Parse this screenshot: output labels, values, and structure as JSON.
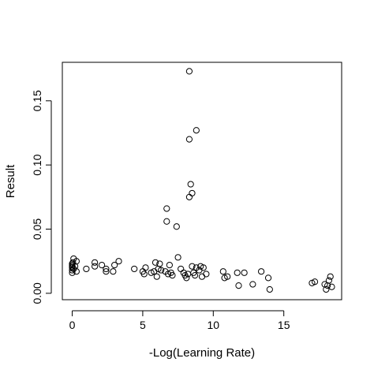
{
  "chart_data": {
    "type": "scatter",
    "title": "",
    "xlabel": "-Log(Learning Rate)",
    "ylabel": "Result",
    "xlim": [
      -0.7,
      19.1
    ],
    "ylim": [
      -0.005,
      0.18
    ],
    "x_ticks": [
      0,
      5,
      10,
      15
    ],
    "x_tick_labels": [
      "0",
      "5",
      "10",
      "15"
    ],
    "y_ticks": [
      0.0,
      0.05,
      0.1,
      0.15
    ],
    "y_tick_labels": [
      "0.00",
      "0.05",
      "0.10",
      "0.15"
    ],
    "grid": false,
    "legend": "none",
    "marker": "open-circle",
    "marker_color": "#000000",
    "points": [
      {
        "x": 0.0,
        "y": 0.016
      },
      {
        "x": 0.0,
        "y": 0.018
      },
      {
        "x": 0.0,
        "y": 0.02
      },
      {
        "x": 0.0,
        "y": 0.021
      },
      {
        "x": 0.0,
        "y": 0.022
      },
      {
        "x": 0.0,
        "y": 0.023
      },
      {
        "x": 0.05,
        "y": 0.024
      },
      {
        "x": 0.1,
        "y": 0.027
      },
      {
        "x": 0.1,
        "y": 0.019
      },
      {
        "x": 0.2,
        "y": 0.021
      },
      {
        "x": 0.3,
        "y": 0.025
      },
      {
        "x": 0.3,
        "y": 0.017
      },
      {
        "x": 1.0,
        "y": 0.019
      },
      {
        "x": 1.6,
        "y": 0.021
      },
      {
        "x": 1.6,
        "y": 0.024
      },
      {
        "x": 2.1,
        "y": 0.022
      },
      {
        "x": 2.4,
        "y": 0.019
      },
      {
        "x": 2.4,
        "y": 0.017
      },
      {
        "x": 2.9,
        "y": 0.017
      },
      {
        "x": 3.0,
        "y": 0.022
      },
      {
        "x": 3.3,
        "y": 0.025
      },
      {
        "x": 4.4,
        "y": 0.019
      },
      {
        "x": 5.0,
        "y": 0.017
      },
      {
        "x": 5.1,
        "y": 0.015
      },
      {
        "x": 5.2,
        "y": 0.02
      },
      {
        "x": 5.6,
        "y": 0.016
      },
      {
        "x": 5.8,
        "y": 0.017
      },
      {
        "x": 5.9,
        "y": 0.024
      },
      {
        "x": 6.0,
        "y": 0.013
      },
      {
        "x": 6.1,
        "y": 0.019
      },
      {
        "x": 6.2,
        "y": 0.023
      },
      {
        "x": 6.3,
        "y": 0.018
      },
      {
        "x": 6.6,
        "y": 0.017
      },
      {
        "x": 6.7,
        "y": 0.066
      },
      {
        "x": 6.7,
        "y": 0.056
      },
      {
        "x": 6.8,
        "y": 0.015
      },
      {
        "x": 6.9,
        "y": 0.022
      },
      {
        "x": 7.0,
        "y": 0.016
      },
      {
        "x": 7.1,
        "y": 0.014
      },
      {
        "x": 7.4,
        "y": 0.052
      },
      {
        "x": 7.5,
        "y": 0.028
      },
      {
        "x": 7.7,
        "y": 0.019
      },
      {
        "x": 7.9,
        "y": 0.016
      },
      {
        "x": 8.0,
        "y": 0.014
      },
      {
        "x": 8.1,
        "y": 0.012
      },
      {
        "x": 8.2,
        "y": 0.015
      },
      {
        "x": 8.3,
        "y": 0.173
      },
      {
        "x": 8.3,
        "y": 0.12
      },
      {
        "x": 8.3,
        "y": 0.075
      },
      {
        "x": 8.4,
        "y": 0.085
      },
      {
        "x": 8.5,
        "y": 0.078
      },
      {
        "x": 8.5,
        "y": 0.021
      },
      {
        "x": 8.6,
        "y": 0.016
      },
      {
        "x": 8.7,
        "y": 0.014
      },
      {
        "x": 8.8,
        "y": 0.127
      },
      {
        "x": 8.8,
        "y": 0.02
      },
      {
        "x": 9.0,
        "y": 0.018
      },
      {
        "x": 9.1,
        "y": 0.021
      },
      {
        "x": 9.2,
        "y": 0.013
      },
      {
        "x": 9.3,
        "y": 0.02
      },
      {
        "x": 9.5,
        "y": 0.015
      },
      {
        "x": 10.7,
        "y": 0.017
      },
      {
        "x": 10.8,
        "y": 0.012
      },
      {
        "x": 11.0,
        "y": 0.013
      },
      {
        "x": 11.7,
        "y": 0.016
      },
      {
        "x": 11.8,
        "y": 0.006
      },
      {
        "x": 12.2,
        "y": 0.016
      },
      {
        "x": 12.8,
        "y": 0.007
      },
      {
        "x": 13.4,
        "y": 0.017
      },
      {
        "x": 13.9,
        "y": 0.012
      },
      {
        "x": 14.0,
        "y": 0.003
      },
      {
        "x": 17.0,
        "y": 0.008
      },
      {
        "x": 17.2,
        "y": 0.009
      },
      {
        "x": 17.9,
        "y": 0.007
      },
      {
        "x": 18.0,
        "y": 0.003
      },
      {
        "x": 18.1,
        "y": 0.006
      },
      {
        "x": 18.2,
        "y": 0.01
      },
      {
        "x": 18.3,
        "y": 0.013
      },
      {
        "x": 18.4,
        "y": 0.005
      }
    ]
  }
}
